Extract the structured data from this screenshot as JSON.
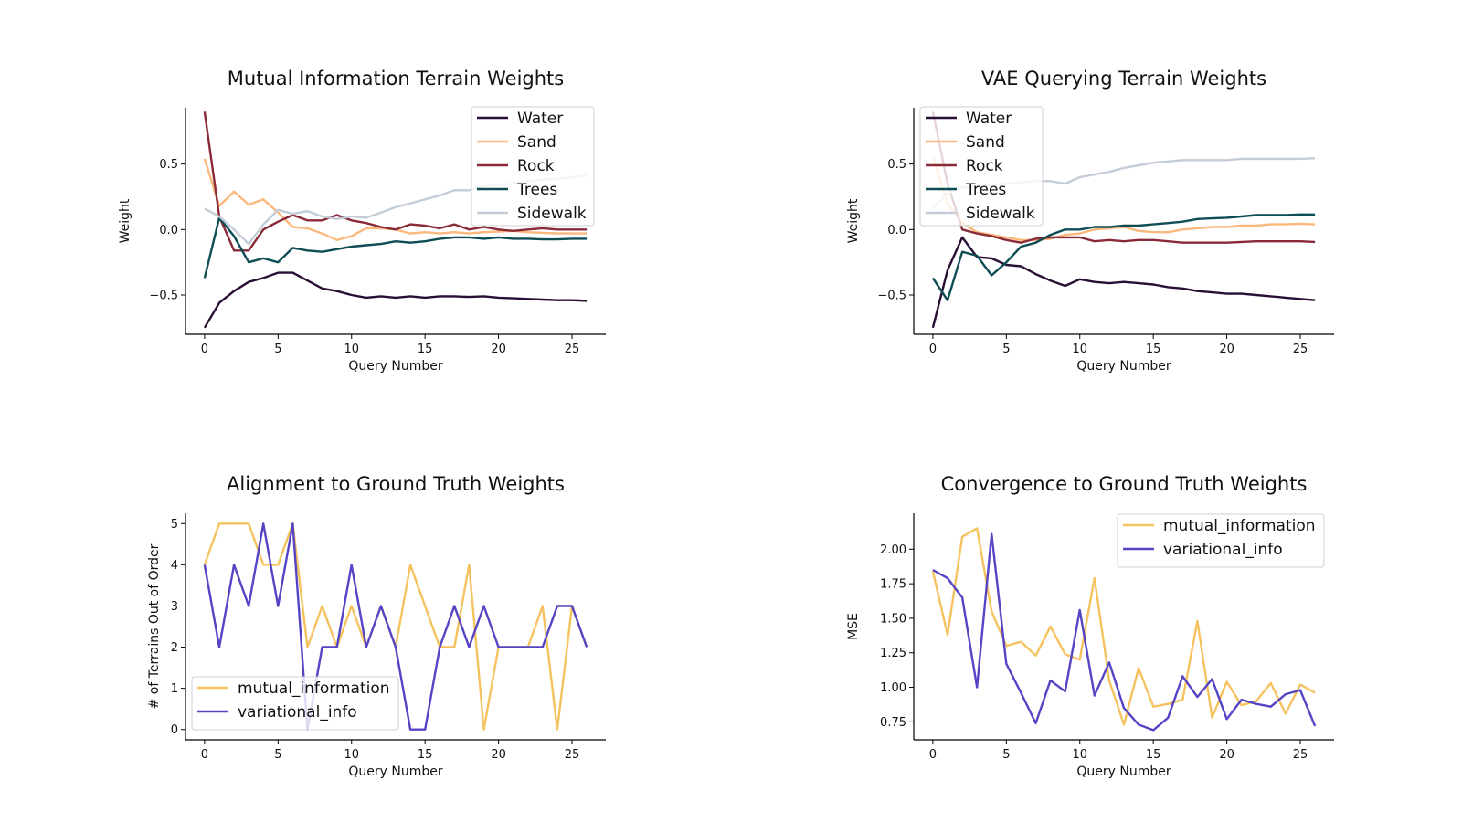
{
  "chart_data": [
    {
      "type": "line",
      "title": "Mutual Information Terrain Weights",
      "xlabel": "Query Number",
      "ylabel": "Weight",
      "xlim": [
        -1.3,
        27.3
      ],
      "ylim": [
        -0.8,
        0.93
      ],
      "xticks": [
        0,
        5,
        10,
        15,
        20,
        25
      ],
      "yticks": [
        -0.5,
        0.0,
        0.5
      ],
      "ytick_labels": [
        "−0.5",
        "0.0",
        "0.5"
      ],
      "legend": "upper-right",
      "x": [
        0,
        1,
        2,
        3,
        4,
        5,
        6,
        7,
        8,
        9,
        10,
        11,
        12,
        13,
        14,
        15,
        16,
        17,
        18,
        19,
        20,
        21,
        22,
        23,
        24,
        25,
        26
      ],
      "series": [
        {
          "name": "Water",
          "color": "#2a0f35",
          "values": [
            -0.75,
            -0.56,
            -0.47,
            -0.4,
            -0.37,
            -0.33,
            -0.33,
            -0.39,
            -0.45,
            -0.47,
            -0.5,
            -0.52,
            -0.51,
            -0.52,
            -0.51,
            -0.52,
            -0.51,
            -0.51,
            -0.515,
            -0.51,
            -0.52,
            -0.525,
            -0.53,
            -0.535,
            -0.54,
            -0.54,
            -0.545
          ]
        },
        {
          "name": "Sand",
          "color": "#fbb87c",
          "values": [
            0.54,
            0.18,
            0.29,
            0.19,
            0.23,
            0.13,
            0.02,
            0.01,
            -0.03,
            -0.08,
            -0.05,
            0.01,
            0.01,
            0.0,
            -0.03,
            -0.02,
            -0.03,
            -0.02,
            -0.03,
            -0.02,
            -0.015,
            -0.01,
            -0.02,
            -0.025,
            -0.03,
            -0.03,
            -0.03
          ]
        },
        {
          "name": "Rock",
          "color": "#8a2a38",
          "values": [
            0.9,
            0.1,
            -0.16,
            -0.16,
            0.0,
            0.06,
            0.11,
            0.07,
            0.07,
            0.11,
            0.07,
            0.05,
            0.02,
            0.0,
            0.04,
            0.03,
            0.01,
            0.04,
            0.0,
            0.02,
            0.0,
            -0.01,
            0.0,
            0.01,
            0.0,
            0.0,
            0.0
          ]
        },
        {
          "name": "Trees",
          "color": "#0e4d54",
          "values": [
            -0.37,
            0.09,
            -0.05,
            -0.25,
            -0.22,
            -0.25,
            -0.14,
            -0.16,
            -0.17,
            -0.15,
            -0.13,
            -0.12,
            -0.11,
            -0.09,
            -0.1,
            -0.09,
            -0.07,
            -0.06,
            -0.06,
            -0.07,
            -0.06,
            -0.07,
            -0.07,
            -0.075,
            -0.075,
            -0.07,
            -0.07
          ]
        },
        {
          "name": "Sidewalk",
          "color": "#c3ccd7",
          "values": [
            0.16,
            0.1,
            0.0,
            -0.11,
            0.04,
            0.15,
            0.12,
            0.14,
            0.1,
            0.08,
            0.1,
            0.09,
            0.13,
            0.17,
            0.2,
            0.23,
            0.26,
            0.3,
            0.3,
            0.33,
            0.34,
            0.35,
            0.37,
            0.38,
            0.39,
            0.4,
            0.41
          ]
        }
      ]
    },
    {
      "type": "line",
      "title": "VAE Querying Terrain Weights",
      "xlabel": "Query Number",
      "ylabel": "Weight",
      "xlim": [
        -1.3,
        27.3
      ],
      "ylim": [
        -0.8,
        0.93
      ],
      "xticks": [
        0,
        5,
        10,
        15,
        20,
        25
      ],
      "yticks": [
        -0.5,
        0.0,
        0.5
      ],
      "ytick_labels": [
        "−0.5",
        "0.0",
        "0.5"
      ],
      "legend": "upper-left",
      "x": [
        0,
        1,
        2,
        3,
        4,
        5,
        6,
        7,
        8,
        9,
        10,
        11,
        12,
        13,
        14,
        15,
        16,
        17,
        18,
        19,
        20,
        21,
        22,
        23,
        24,
        25,
        26
      ],
      "series": [
        {
          "name": "Water",
          "color": "#2a0f35",
          "values": [
            -0.75,
            -0.31,
            -0.06,
            -0.21,
            -0.22,
            -0.27,
            -0.28,
            -0.34,
            -0.39,
            -0.43,
            -0.38,
            -0.4,
            -0.41,
            -0.4,
            -0.41,
            -0.42,
            -0.44,
            -0.45,
            -0.47,
            -0.48,
            -0.49,
            -0.49,
            -0.5,
            -0.51,
            -0.52,
            -0.53,
            -0.54
          ]
        },
        {
          "name": "Sand",
          "color": "#fbb87c",
          "values": [
            0.55,
            0.2,
            0.05,
            -0.02,
            -0.04,
            -0.06,
            -0.08,
            -0.08,
            -0.07,
            -0.04,
            -0.03,
            0.0,
            0.01,
            0.02,
            -0.01,
            -0.02,
            -0.02,
            0.0,
            0.01,
            0.02,
            0.02,
            0.03,
            0.03,
            0.04,
            0.04,
            0.045,
            0.04
          ]
        },
        {
          "name": "Rock",
          "color": "#8a2a38",
          "values": [
            0.9,
            0.35,
            0.0,
            -0.03,
            -0.05,
            -0.08,
            -0.1,
            -0.07,
            -0.06,
            -0.06,
            -0.06,
            -0.09,
            -0.08,
            -0.09,
            -0.08,
            -0.08,
            -0.09,
            -0.1,
            -0.1,
            -0.1,
            -0.1,
            -0.095,
            -0.09,
            -0.09,
            -0.09,
            -0.09,
            -0.095
          ]
        },
        {
          "name": "Trees",
          "color": "#0e4d54",
          "values": [
            -0.37,
            -0.54,
            -0.17,
            -0.2,
            -0.35,
            -0.25,
            -0.13,
            -0.1,
            -0.04,
            0.0,
            0.0,
            0.02,
            0.02,
            0.03,
            0.03,
            0.04,
            0.05,
            0.06,
            0.08,
            0.085,
            0.09,
            0.1,
            0.11,
            0.11,
            0.11,
            0.115,
            0.115
          ]
        },
        {
          "name": "Sidewalk",
          "color": "#c3ccd7",
          "values": [
            0.16,
            0.28,
            0.32,
            0.33,
            0.34,
            0.35,
            0.36,
            0.37,
            0.37,
            0.35,
            0.4,
            0.42,
            0.44,
            0.47,
            0.49,
            0.51,
            0.52,
            0.53,
            0.53,
            0.53,
            0.53,
            0.54,
            0.54,
            0.54,
            0.54,
            0.54,
            0.545
          ]
        }
      ]
    },
    {
      "type": "line",
      "title": "Alignment to Ground Truth Weights",
      "xlabel": "Query Number",
      "ylabel": "# of Terrains Out of Order",
      "xlim": [
        -1.3,
        27.3
      ],
      "ylim": [
        -0.25,
        5.25
      ],
      "xticks": [
        0,
        5,
        10,
        15,
        20,
        25
      ],
      "yticks": [
        0,
        1,
        2,
        3,
        4,
        5
      ],
      "ytick_labels": [
        "0",
        "1",
        "2",
        "3",
        "4",
        "5"
      ],
      "legend": "lower-left",
      "x": [
        0,
        1,
        2,
        3,
        4,
        5,
        6,
        7,
        8,
        9,
        10,
        11,
        12,
        13,
        14,
        15,
        16,
        17,
        18,
        19,
        20,
        21,
        22,
        23,
        24,
        25,
        26
      ],
      "series": [
        {
          "name": "mutual_information",
          "color": "#f5c260",
          "values": [
            4,
            5,
            5,
            5,
            4,
            4,
            5,
            2,
            3,
            2,
            3,
            2,
            3,
            2,
            4,
            3,
            2,
            2,
            4,
            0,
            2,
            2,
            2,
            3,
            0,
            3,
            2
          ]
        },
        {
          "name": "variational_info",
          "color": "#5545c4",
          "values": [
            4,
            2,
            4,
            3,
            5,
            3,
            5,
            0,
            2,
            2,
            4,
            2,
            3,
            2,
            0,
            0,
            2,
            3,
            2,
            3,
            2,
            2,
            2,
            2,
            3,
            3,
            2
          ]
        }
      ]
    },
    {
      "type": "line",
      "title": "Convergence to Ground Truth Weights",
      "xlabel": "Query Number",
      "ylabel": "MSE",
      "xlim": [
        -1.3,
        27.3
      ],
      "ylim": [
        0.62,
        2.26
      ],
      "xticks": [
        0,
        5,
        10,
        15,
        20,
        25
      ],
      "yticks": [
        0.75,
        1.0,
        1.25,
        1.5,
        1.75,
        2.0
      ],
      "ytick_labels": [
        "0.75",
        "1.00",
        "1.25",
        "1.50",
        "1.75",
        "2.00"
      ],
      "legend": "upper-right",
      "x": [
        0,
        1,
        2,
        3,
        4,
        5,
        6,
        7,
        8,
        9,
        10,
        11,
        12,
        13,
        14,
        15,
        16,
        17,
        18,
        19,
        20,
        21,
        22,
        23,
        24,
        25,
        26
      ],
      "series": [
        {
          "name": "mutual_information",
          "color": "#f5c260",
          "values": [
            1.84,
            1.38,
            2.09,
            2.15,
            1.55,
            1.3,
            1.33,
            1.23,
            1.44,
            1.24,
            1.2,
            1.79,
            1.05,
            0.73,
            1.14,
            0.86,
            0.88,
            0.91,
            1.48,
            0.78,
            1.04,
            0.87,
            0.9,
            1.03,
            0.81,
            1.02,
            0.96
          ]
        },
        {
          "name": "variational_info",
          "color": "#5545c4",
          "values": [
            1.85,
            1.79,
            1.65,
            1.0,
            2.11,
            1.17,
            0.96,
            0.74,
            1.05,
            0.97,
            1.56,
            0.94,
            1.18,
            0.85,
            0.73,
            0.69,
            0.78,
            1.08,
            0.93,
            1.06,
            0.77,
            0.91,
            0.88,
            0.86,
            0.95,
            0.98,
            0.72
          ]
        }
      ]
    }
  ]
}
